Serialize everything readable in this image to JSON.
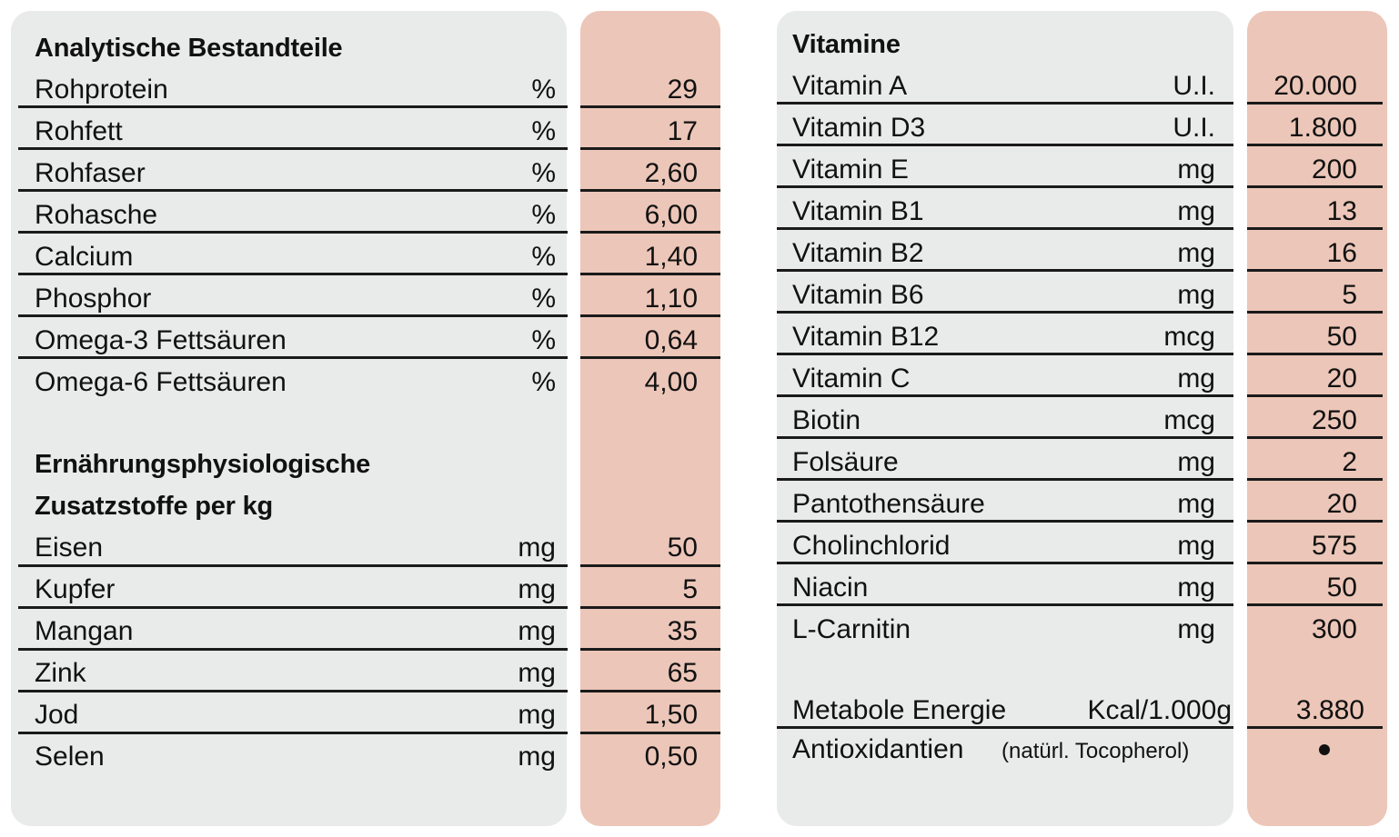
{
  "left": {
    "analytical_heading": "Analytische Bestandteile",
    "analytical_rows": [
      {
        "label": "Rohprotein",
        "unit": "%",
        "value": "29"
      },
      {
        "label": "Rohfett",
        "unit": "%",
        "value": "17"
      },
      {
        "label": "Rohfaser",
        "unit": "%",
        "value": "2,60"
      },
      {
        "label": "Rohasche",
        "unit": "%",
        "value": "6,00"
      },
      {
        "label": "Calcium",
        "unit": "%",
        "value": "1,40"
      },
      {
        "label": "Phosphor",
        "unit": "%",
        "value": "1,10"
      },
      {
        "label": "Omega-3 Fettsäuren",
        "unit": "%",
        "value": "0,64"
      },
      {
        "label": "Omega-6 Fettsäuren",
        "unit": "%",
        "value": "4,00"
      }
    ],
    "additives_heading_line1": "Ernährungsphysiologische",
    "additives_heading_line2": "Zusatzstoffe per kg",
    "additive_rows": [
      {
        "label": "Eisen",
        "unit": "mg",
        "value": "50"
      },
      {
        "label": "Kupfer",
        "unit": "mg",
        "value": "5"
      },
      {
        "label": "Mangan",
        "unit": "mg",
        "value": "35"
      },
      {
        "label": "Zink",
        "unit": "mg",
        "value": "65"
      },
      {
        "label": "Jod",
        "unit": "mg",
        "value": "1,50"
      },
      {
        "label": "Selen",
        "unit": "mg",
        "value": "0,50"
      }
    ]
  },
  "right": {
    "vitamins_heading": "Vitamine",
    "vitamin_rows": [
      {
        "label": "Vitamin A",
        "unit": "U.I.",
        "value": "20.000"
      },
      {
        "label": "Vitamin D3",
        "unit": "U.I.",
        "value": "1.800"
      },
      {
        "label": "Vitamin E",
        "unit": "mg",
        "value": "200"
      },
      {
        "label": "Vitamin B1",
        "unit": "mg",
        "value": "13"
      },
      {
        "label": "Vitamin B2",
        "unit": "mg",
        "value": "16"
      },
      {
        "label": "Vitamin B6",
        "unit": "mg",
        "value": "5"
      },
      {
        "label": "Vitamin B12",
        "unit": "mcg",
        "value": "50"
      },
      {
        "label": "Vitamin C",
        "unit": "mg",
        "value": "20"
      },
      {
        "label": "Biotin",
        "unit": "mcg",
        "value": "250"
      },
      {
        "label": "Folsäure",
        "unit": "mg",
        "value": "2"
      },
      {
        "label": "Pantothensäure",
        "unit": "mg",
        "value": "20"
      },
      {
        "label": "Cholinchlorid",
        "unit": "mg",
        "value": "575"
      },
      {
        "label": "Niacin",
        "unit": "mg",
        "value": "50"
      },
      {
        "label": "L-Carnitin",
        "unit": "mg",
        "value": "300"
      }
    ],
    "energy": {
      "label": "Metabole Energie",
      "unit": "Kcal/1.000g",
      "value": "3.880"
    },
    "antioxidants": {
      "label": "Antioxidantien",
      "note": "(natürl. Tocopherol)",
      "marker": "•"
    }
  },
  "colors": {
    "panel": "#e9eaea",
    "value_column": "#ecc6b8",
    "rule": "#1a1a1a"
  }
}
